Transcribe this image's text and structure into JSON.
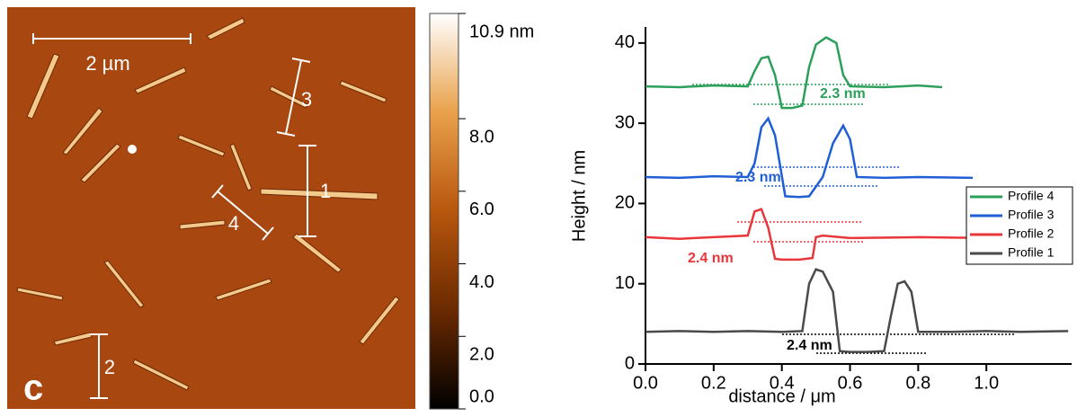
{
  "afm_image": {
    "scale_bar": "2 µm",
    "profile_markers": [
      "1",
      "2",
      "3",
      "4"
    ],
    "panel_label": "c"
  },
  "colorbar": {
    "lim": [
      0,
      10.9
    ],
    "ticks": [
      {
        "value": 10.9,
        "label": "10.9 nm"
      },
      {
        "value": 8,
        "label": "8.0"
      },
      {
        "value": 6,
        "label": "6.0"
      },
      {
        "value": 4,
        "label": "4.0"
      },
      {
        "value": 2,
        "label": "2.0"
      },
      {
        "value": 0,
        "label": "0.0"
      }
    ]
  },
  "chart_data": {
    "type": "line",
    "xlabel": "distance / μm",
    "ylabel": "Height / nm",
    "xlim": [
      0,
      1.25
    ],
    "ylim": [
      0,
      42
    ],
    "xticks": [
      {
        "value": 0,
        "label": "0.0"
      },
      {
        "value": 0.2,
        "label": "0.2"
      },
      {
        "value": 0.4,
        "label": "0.4"
      },
      {
        "value": 0.6,
        "label": "0.6"
      },
      {
        "value": 0.8,
        "label": "0.8"
      },
      {
        "value": 1,
        "label": "1.0"
      }
    ],
    "yticks": [
      0,
      10,
      20,
      30,
      40
    ],
    "legend": "right",
    "annotations": [
      "2.3 nm",
      "2.3 nm",
      "2.4 nm",
      "2.4 nm"
    ],
    "series": [
      {
        "name": "Profile 4",
        "color": "#2ca05a",
        "x": [
          0,
          0.1,
          0.2,
          0.3,
          0.32,
          0.34,
          0.36,
          0.38,
          0.4,
          0.43,
          0.46,
          0.48,
          0.5,
          0.53,
          0.56,
          0.58,
          0.6,
          0.7,
          0.8,
          0.87
        ],
        "values": [
          34.6,
          34.5,
          34.7,
          34.6,
          36.5,
          38.1,
          38.3,
          36,
          31.9,
          31.9,
          32.2,
          37,
          39.8,
          40.7,
          40,
          36,
          34.6,
          34.5,
          34.7,
          34.5
        ]
      },
      {
        "name": "Profile 3",
        "color": "#1f5fd6",
        "x": [
          0,
          0.1,
          0.2,
          0.3,
          0.32,
          0.34,
          0.36,
          0.38,
          0.41,
          0.45,
          0.48,
          0.52,
          0.55,
          0.58,
          0.6,
          0.62,
          0.7,
          0.8,
          0.96
        ],
        "values": [
          23.3,
          23.2,
          23.4,
          23.3,
          25,
          29.5,
          30.6,
          28.5,
          20.9,
          20.8,
          20.9,
          23.3,
          27.5,
          29.7,
          28,
          23.3,
          23.2,
          23.3,
          23.2
        ]
      },
      {
        "name": "Profile 2",
        "color": "#e8363a",
        "x": [
          0,
          0.1,
          0.2,
          0.3,
          0.32,
          0.34,
          0.36,
          0.38,
          0.4,
          0.45,
          0.49,
          0.5,
          0.52,
          0.6,
          0.8,
          1,
          1.2
        ],
        "values": [
          15.8,
          15.6,
          15.8,
          16,
          19,
          19.3,
          17,
          13.1,
          13,
          13,
          13.2,
          15.8,
          16,
          15.7,
          15.8,
          15.7,
          15.6
        ]
      },
      {
        "name": "Profile 1",
        "color": "#4a4a4a",
        "x": [
          0,
          0.1,
          0.2,
          0.3,
          0.4,
          0.46,
          0.48,
          0.5,
          0.52,
          0.55,
          0.57,
          0.6,
          0.65,
          0.7,
          0.72,
          0.74,
          0.76,
          0.78,
          0.8,
          0.9,
          1,
          1.1,
          1.24
        ],
        "values": [
          4,
          4.1,
          4,
          4.1,
          4,
          4.1,
          10,
          11.8,
          11.5,
          9,
          1.6,
          1.5,
          1.5,
          1.6,
          6,
          10,
          10.3,
          9,
          4,
          4,
          4.1,
          4,
          4.1
        ]
      }
    ]
  }
}
